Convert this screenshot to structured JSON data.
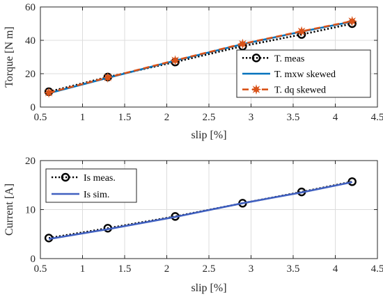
{
  "chart_data": [
    {
      "type": "line",
      "xlabel": "slip [%]",
      "ylabel": "Torque [N m]",
      "xlim": [
        0.5,
        4.5
      ],
      "ylim": [
        0,
        60
      ],
      "xticks": [
        0.5,
        1,
        1.5,
        2,
        2.5,
        3,
        3.5,
        4,
        4.5
      ],
      "yticks": [
        0,
        20,
        40,
        60
      ],
      "grid": true,
      "legend_position": "lower-right",
      "series": [
        {
          "name": "T. meas",
          "color": "#000000",
          "style": "dotted-circle-markers",
          "x": [
            0.6,
            1.3,
            2.1,
            2.9,
            3.6,
            4.2
          ],
          "y": [
            9.2,
            18.0,
            27.0,
            36.5,
            43.5,
            50.0
          ]
        },
        {
          "name": "T. mxw skewed",
          "color": "#0072BD",
          "style": "solid",
          "x": [
            0.6,
            1.3,
            2.1,
            2.9,
            3.6,
            4.2
          ],
          "y": [
            8.3,
            17.5,
            27.8,
            37.7,
            45.2,
            51.2
          ]
        },
        {
          "name": "T. dq skewed",
          "color": "#D95319",
          "style": "dashed-star-markers",
          "x": [
            0.6,
            1.3,
            2.1,
            2.9,
            3.6,
            4.2
          ],
          "y": [
            8.6,
            17.7,
            28.0,
            37.9,
            45.4,
            51.5
          ]
        }
      ]
    },
    {
      "type": "line",
      "xlabel": "slip [%]",
      "ylabel": "Current [A]",
      "xlim": [
        0.5,
        4.5
      ],
      "ylim": [
        0,
        20
      ],
      "xticks": [
        0.5,
        1,
        1.5,
        2,
        2.5,
        3,
        3.5,
        4,
        4.5
      ],
      "yticks": [
        0,
        10,
        20
      ],
      "grid": true,
      "legend_position": "upper-left",
      "series": [
        {
          "name": "Is meas.",
          "color": "#000000",
          "style": "dotted-circle-markers",
          "x": [
            0.6,
            1.3,
            2.1,
            2.9,
            3.6,
            4.2
          ],
          "y": [
            4.2,
            6.2,
            8.6,
            11.3,
            13.6,
            15.7
          ]
        },
        {
          "name": "Is sim.",
          "color": "#4060C0",
          "style": "solid",
          "x": [
            0.6,
            1.3,
            2.1,
            2.9,
            3.6,
            4.2
          ],
          "y": [
            4.0,
            6.0,
            8.5,
            11.3,
            13.5,
            15.6
          ]
        }
      ]
    }
  ]
}
